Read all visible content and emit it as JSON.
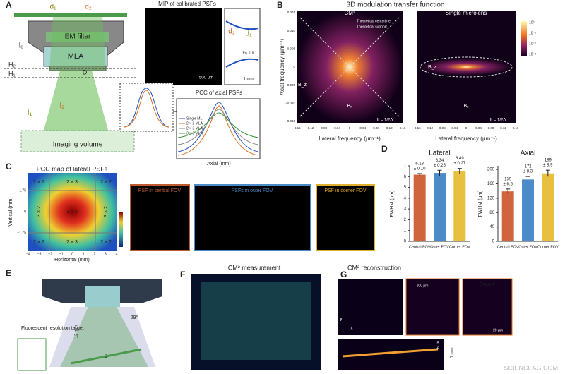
{
  "panel_labels": [
    "A",
    "B",
    "C",
    "D",
    "E",
    "F",
    "G"
  ],
  "a": {
    "d1": "d₁",
    "d2": "d₂",
    "em_filter": "EM filter",
    "mla": "MLA",
    "h2": "H₂",
    "h1": "H₁",
    "l0": "l₀",
    "l1": "l₁",
    "l2": "l₂",
    "D": "D",
    "imaging_volume": "Imaging volume",
    "mip_title": "MIP of calibrated PSFs",
    "scale_500": "500 μm",
    "eq_fit": "Eq. 1 fit",
    "scale_1mm": "1 mm",
    "pcc_title": "PCC of axial PSFs",
    "pcc_xlabel": "Axial (mm)",
    "legend": [
      "Single ML",
      "2 × 2 MLA",
      "2 × 3 MLA",
      "3 × 3 MLA"
    ]
  },
  "b": {
    "title": "3D modulation transfer function",
    "left_title": "CM²",
    "right_title": "Single microlens",
    "ylabel": "Axial frequency (μm⁻¹)",
    "xlabel": "Lateral frequency (μm⁻¹)",
    "legend": [
      "Theoretical centerline",
      "Theoretical support"
    ],
    "bx": "Bₓ",
    "bz": "B_z",
    "fx": "fₓ = 1/2Δ",
    "xticks": [
      "−0.16",
      "−0.12",
      "−0.08",
      "−0.04",
      "0",
      "0.04",
      "0.08",
      "0.12",
      "0.16"
    ],
    "yticks": [
      "0.015",
      "0.010",
      "0.005",
      "0",
      "−0.005",
      "−0.010",
      "−0.015"
    ],
    "colorbar": [
      "10⁰",
      "10⁻¹",
      "10⁻²",
      "10⁻³"
    ]
  },
  "c": {
    "title": "PCC map of lateral PSFs",
    "regions": [
      "2 × 2",
      "2 × 3",
      "2 × 2",
      "3 × 2",
      "3 × 3",
      "3 × 2",
      "2 × 2",
      "2 × 3",
      "2 × 2"
    ],
    "xlabel": "Horizontal (mm)",
    "ylabel": "Vertical (mm)",
    "xticks": [
      "−4",
      "−3",
      "−2",
      "−1",
      "0",
      "1",
      "2",
      "3",
      "4"
    ],
    "yticks": [
      "1.75",
      "0",
      "−1.75"
    ],
    "fov": [
      "PSF in central FOV",
      "PSFs in outer FOV",
      "PSF in corner FOV"
    ]
  },
  "e": {
    "target": "Fluorescent resolution target",
    "dist": "12 mm",
    "angle": "29°",
    "theta": "θ"
  },
  "f": {
    "title": "CM² measurement"
  },
  "g": {
    "title": "CM² reconstruction",
    "scale_100": "100 μm",
    "group": "Group 6",
    "scale_20": "20 μm",
    "scale_1mm": "1 mm",
    "x": "x",
    "y": "y",
    "z": "z"
  },
  "watermark": "SCIENCEAG.COM",
  "chart_data": [
    {
      "type": "bar",
      "title": "Lateral",
      "ylabel": "FWHM (μm)",
      "categories": [
        "Central FOV",
        "Outer FOV",
        "Corner FOV"
      ],
      "values": [
        6.18,
        6.34,
        6.49
      ],
      "errors": [
        0.1,
        0.25,
        0.27
      ],
      "error_labels": [
        "± 0.10",
        "± 0.25",
        "± 0.27"
      ],
      "colors": [
        "#d0643c",
        "#4a8bc8",
        "#e8c040"
      ],
      "ylim": [
        0,
        7
      ],
      "yticks": [
        0,
        1,
        2,
        3,
        4,
        5,
        6,
        7
      ]
    },
    {
      "type": "bar",
      "title": "Axial",
      "ylabel": "FWHM (μm)",
      "categories": [
        "Central FOV",
        "Outer FOV",
        "Corner FOV"
      ],
      "values": [
        139,
        172,
        189
      ],
      "errors": [
        6.5,
        8.3,
        8.9
      ],
      "error_labels": [
        "± 6.5",
        "± 8.3",
        "± 8.9"
      ],
      "colors": [
        "#d0643c",
        "#4a8bc8",
        "#e8c040"
      ],
      "ylim": [
        0,
        210
      ],
      "yticks": [
        0,
        40,
        80,
        120,
        160,
        200
      ]
    }
  ]
}
